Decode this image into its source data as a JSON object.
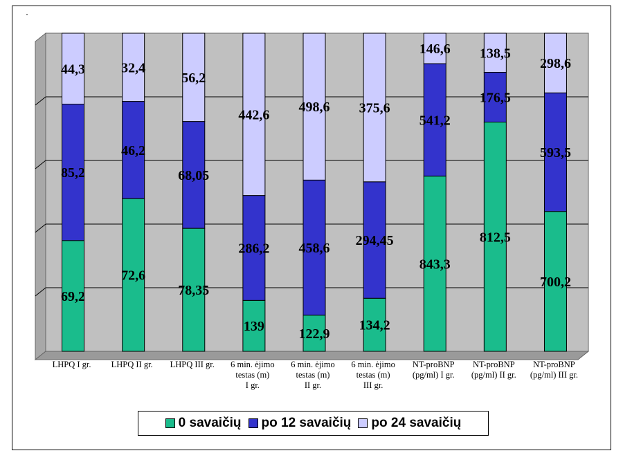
{
  "chart_data": {
    "type": "bar",
    "stacked": "percent",
    "categories": [
      "LHPQ I gr.",
      "LHPQ II gr.",
      "LHPQ III gr.",
      "6 min. ėjimo\ntestas (m)\nI gr.",
      "6 min. ėjimo\ntestas (m)\nII gr.",
      "6 min. ėjimo\ntestas (m)\nIII gr.",
      "NT-proBNP\n(pg/ml) I gr.",
      "NT-proBNP\n(pg/ml) II gr.",
      "NT-proBNP\n(pg/ml) III gr."
    ],
    "series": [
      {
        "name": "0 savaičių",
        "color": "#1ABC8C",
        "values": [
          69.2,
          72.6,
          78.35,
          139,
          122.9,
          134.2,
          843.3,
          812.5,
          700.2
        ],
        "labels": [
          "69,2",
          "72,6",
          "78,35",
          "139",
          "122,9",
          "134,2",
          "843,3",
          "812,5",
          "700,2"
        ]
      },
      {
        "name": "po 12 savaičių",
        "color": "#3333CC",
        "values": [
          85.2,
          46.2,
          68.05,
          286.2,
          458.6,
          294.45,
          541.2,
          176.5,
          593.5
        ],
        "labels": [
          "85,2",
          "46,2",
          "68,05",
          "286,2",
          "458,6",
          "294,45",
          "541,2",
          "176,5",
          "593,5"
        ]
      },
      {
        "name": "po 24 savaičių",
        "color": "#CCCCFF",
        "values": [
          44.3,
          32.4,
          56.2,
          442.6,
          498.6,
          375.6,
          146.6,
          138.5,
          298.6
        ],
        "labels": [
          "44,3",
          "32,4",
          "56,2",
          "442,6",
          "498,6",
          "375,6",
          "146,6",
          "138,5",
          "298,6"
        ]
      }
    ],
    "ylim": [
      0,
      100
    ],
    "grid": true,
    "plot_background": "#C0C0C0",
    "legend_position": "bottom"
  }
}
